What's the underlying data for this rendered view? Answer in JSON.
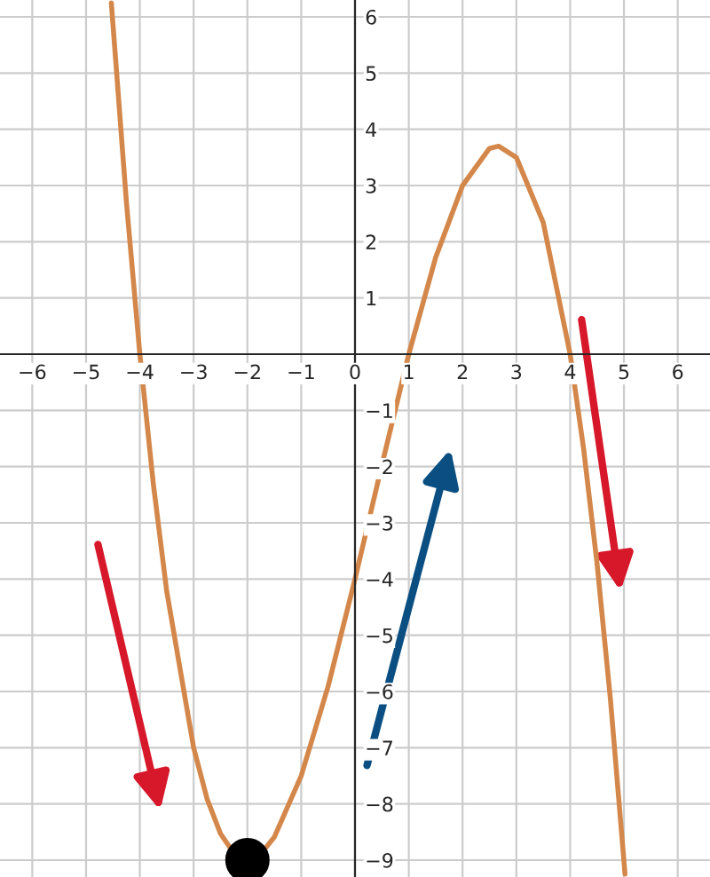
{
  "chart_data": {
    "type": "line",
    "xlim": [
      -6.6,
      6.6
    ],
    "ylim": [
      -9.3,
      6.3
    ],
    "xticks": [
      {
        "value": -6,
        "label": "−6"
      },
      {
        "value": -5,
        "label": "−5"
      },
      {
        "value": -4,
        "label": "−4"
      },
      {
        "value": -3,
        "label": "−3"
      },
      {
        "value": -2,
        "label": "−2"
      },
      {
        "value": -1,
        "label": "−1"
      },
      0,
      1,
      2,
      3,
      4,
      5,
      6
    ],
    "yticks": [
      {
        "value": -9,
        "label": "−9"
      },
      {
        "value": -8,
        "label": "−8"
      },
      {
        "value": -7,
        "label": "−7"
      },
      {
        "value": -6,
        "label": "−6"
      },
      {
        "value": -5,
        "label": "−5"
      },
      {
        "value": -4,
        "label": "−4"
      },
      {
        "value": -3,
        "label": "−3"
      },
      {
        "value": -2,
        "label": "−2"
      },
      {
        "value": -1,
        "label": "−1"
      },
      1,
      2,
      3,
      4,
      5,
      6
    ],
    "grid": true,
    "legend": false,
    "series": [
      {
        "color": "#d4874a",
        "x": [
          -4.53,
          -4.25,
          -4,
          -3.75,
          -3.5,
          -3,
          -2.75,
          -2.5,
          -2.25,
          -1.75,
          -1.5,
          -1,
          -0.5,
          0,
          0.5,
          1,
          1.5,
          2,
          2.5,
          2.67,
          3,
          3.5,
          4,
          4.25,
          4.5,
          4.75,
          5.02
        ],
        "values": [
          6.25,
          2.71,
          0,
          -2.3,
          -4.22,
          -7,
          -7.91,
          -8.53,
          -8.88,
          -8.89,
          -8.59,
          -7.5,
          -5.91,
          -4,
          -1.97,
          0,
          1.72,
          3,
          3.66,
          3.7,
          3.5,
          2.34,
          0,
          -1.68,
          -3.72,
          -6.15,
          -9.25
        ]
      },
      {
        "type": "scatter",
        "color": "#000000",
        "marker": "circle",
        "x": [
          -2
        ],
        "values": [
          -9
        ]
      }
    ]
  }
}
